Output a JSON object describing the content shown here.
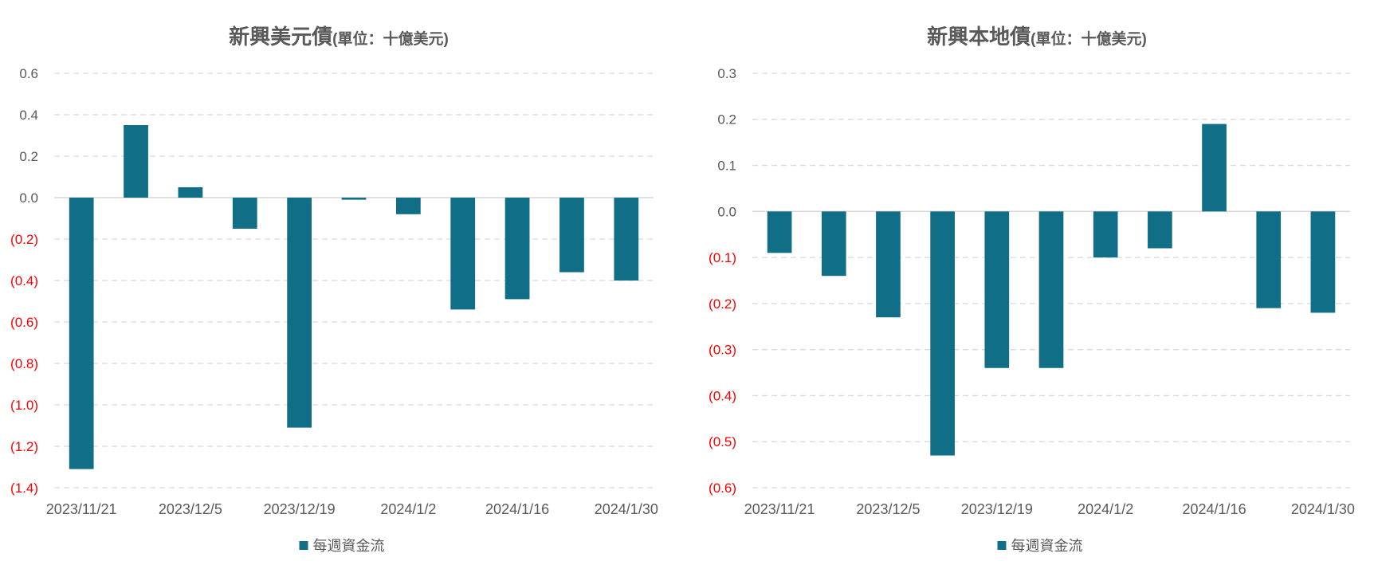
{
  "colors": {
    "bar": "#106e87",
    "text": "#595959",
    "positive_tick": "#595959",
    "negative_tick": "#ff0000",
    "grid": "#d9d9d9"
  },
  "chart_data": [
    {
      "type": "bar",
      "title": "新興美元債",
      "title_unit": "(單位：十億美元)",
      "categories": [
        "2023/11/21",
        "",
        "2023/12/5",
        "",
        "2023/12/19",
        "",
        "2024/1/2",
        "",
        "2024/1/16",
        "",
        "2024/1/30"
      ],
      "series": [
        {
          "name": "每週資金流",
          "values": [
            -1.31,
            0.35,
            0.05,
            -0.15,
            -1.11,
            -0.01,
            -0.08,
            -0.54,
            -0.49,
            -0.36,
            -0.4
          ]
        }
      ],
      "ylim": [
        -1.4,
        0.6
      ],
      "yticks": [
        {
          "value": 0.6,
          "label": "0.6"
        },
        {
          "value": 0.4,
          "label": "0.4"
        },
        {
          "value": 0.2,
          "label": "0.2"
        },
        {
          "value": 0.0,
          "label": "0.0"
        },
        {
          "value": -0.2,
          "label": "(0.2)"
        },
        {
          "value": -0.4,
          "label": "(0.4)"
        },
        {
          "value": -0.6,
          "label": "(0.6)"
        },
        {
          "value": -0.8,
          "label": "(0.8)"
        },
        {
          "value": -1.0,
          "label": "(1.0)"
        },
        {
          "value": -1.2,
          "label": "(1.2)"
        },
        {
          "value": -1.4,
          "label": "(1.4)"
        }
      ],
      "grid": true,
      "legend": "bottom"
    },
    {
      "type": "bar",
      "title": "新興本地債",
      "title_unit": "(單位：十億美元)",
      "categories": [
        "2023/11/21",
        "",
        "2023/12/5",
        "",
        "2023/12/19",
        "",
        "2024/1/2",
        "",
        "2024/1/16",
        "",
        "2024/1/30"
      ],
      "series": [
        {
          "name": "每週資金流",
          "values": [
            -0.09,
            -0.14,
            -0.23,
            -0.53,
            -0.34,
            -0.34,
            -0.1,
            -0.08,
            0.19,
            -0.21,
            -0.22
          ]
        }
      ],
      "ylim": [
        -0.6,
        0.3
      ],
      "yticks": [
        {
          "value": 0.3,
          "label": "0.3"
        },
        {
          "value": 0.2,
          "label": "0.2"
        },
        {
          "value": 0.1,
          "label": "0.1"
        },
        {
          "value": 0.0,
          "label": "0.0"
        },
        {
          "value": -0.1,
          "label": "(0.1)"
        },
        {
          "value": -0.2,
          "label": "(0.2)"
        },
        {
          "value": -0.3,
          "label": "(0.3)"
        },
        {
          "value": -0.4,
          "label": "(0.4)"
        },
        {
          "value": -0.5,
          "label": "(0.5)"
        },
        {
          "value": -0.6,
          "label": "(0.6)"
        }
      ],
      "grid": true,
      "legend": "bottom"
    }
  ]
}
